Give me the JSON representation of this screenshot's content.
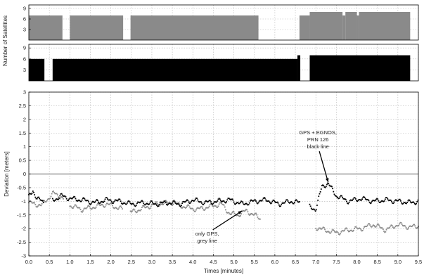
{
  "figure": {
    "ylabel_satellites": "Number of Satellites",
    "colors": {
      "grey": "#8a8a8a",
      "black": "#000000",
      "zero_line": "#7f7f7f",
      "grid": "#b5b5b5"
    }
  },
  "chart_data": [
    {
      "id": "top",
      "type": "area",
      "title": "",
      "xlim": [
        0,
        9.5
      ],
      "ylim": [
        0,
        10
      ],
      "yticks": [
        3,
        6,
        9
      ],
      "xticks": [],
      "grid": true,
      "series": [
        {
          "segments": [
            {
              "x0": 0.0,
              "x1": 0.82,
              "y": 7
            },
            {
              "x0": 1.0,
              "x1": 2.3,
              "y": 7
            },
            {
              "x0": 2.48,
              "x1": 5.6,
              "y": 7
            },
            {
              "x0": 6.6,
              "x1": 6.85,
              "y": 7
            },
            {
              "x0": 6.85,
              "x1": 7.65,
              "y": 8
            },
            {
              "x0": 7.65,
              "x1": 7.72,
              "y": 7
            },
            {
              "x0": 7.72,
              "x1": 8.0,
              "y": 8
            },
            {
              "x0": 8.0,
              "x1": 8.05,
              "y": 7
            },
            {
              "x0": 8.05,
              "x1": 9.3,
              "y": 8
            }
          ]
        }
      ]
    },
    {
      "id": "middle",
      "type": "area",
      "title": "",
      "xlim": [
        0,
        9.5
      ],
      "ylim": [
        0,
        10
      ],
      "yticks": [
        3,
        6,
        9
      ],
      "xticks": [],
      "grid": true,
      "series": [
        {
          "segments": [
            {
              "x0": 0.0,
              "x1": 0.38,
              "y": 6
            },
            {
              "x0": 0.58,
              "x1": 6.55,
              "y": 6
            },
            {
              "x0": 6.55,
              "x1": 6.62,
              "y": 7
            },
            {
              "x0": 6.85,
              "x1": 9.3,
              "y": 7
            }
          ]
        }
      ]
    },
    {
      "id": "bottom",
      "type": "scatter",
      "title": "",
      "xlabel": "Times [minutes]",
      "ylabel": "Deviation [meters]",
      "xlim": [
        0,
        9.5
      ],
      "ylim": [
        -3,
        3
      ],
      "xticks": [
        0.0,
        0.5,
        1.0,
        1.5,
        2.0,
        2.5,
        3.0,
        3.5,
        4.0,
        4.5,
        5.0,
        5.5,
        6.0,
        6.5,
        7.0,
        7.5,
        8.0,
        8.5,
        9.0,
        9.5
      ],
      "xtick_labels": [
        "0.0",
        "0.5",
        "1.0",
        "1.5",
        "2.0",
        "2.5",
        "3.0",
        "3.5",
        "4.0",
        "4.5",
        "5.0",
        "5.5",
        "6.0",
        "6.5",
        "7.0",
        "7.5",
        "8.0",
        "8.5",
        "9.0",
        "9.5"
      ],
      "yticks": [
        -3,
        -2.5,
        -2,
        -1.5,
        -1,
        -0.5,
        0,
        0.5,
        1,
        1.5,
        2,
        2.5,
        3
      ],
      "ytick_labels": [
        "-3",
        "-2.5",
        "-2",
        "-1.5",
        "-1",
        "-0.5",
        "0",
        "0.5",
        "1",
        "1.5",
        "2",
        "2.5",
        "3"
      ],
      "grid": true,
      "reference_line_y": 0,
      "series": [
        {
          "color": "#8a8a8a",
          "ranges": [
            [
              0.0,
              0.85
            ],
            [
              1.0,
              2.3
            ],
            [
              2.48,
              5.65
            ],
            [
              7.0,
              9.5
            ]
          ],
          "points": [
            [
              0.0,
              -1.05
            ],
            [
              0.3,
              -1.15
            ],
            [
              0.5,
              -0.85
            ],
            [
              0.6,
              -0.7
            ],
            [
              0.8,
              -0.85
            ],
            [
              1.0,
              -1.15
            ],
            [
              1.3,
              -1.3
            ],
            [
              1.6,
              -1.2
            ],
            [
              1.9,
              -1.1
            ],
            [
              2.2,
              -1.25
            ],
            [
              2.5,
              -1.4
            ],
            [
              2.8,
              -1.25
            ],
            [
              3.1,
              -1.1
            ],
            [
              3.5,
              -1.05
            ],
            [
              3.8,
              -1.2
            ],
            [
              4.1,
              -1.3
            ],
            [
              4.4,
              -1.2
            ],
            [
              4.7,
              -1.1
            ],
            [
              4.9,
              -1.45
            ],
            [
              5.1,
              -1.5
            ],
            [
              5.3,
              -1.35
            ],
            [
              5.5,
              -1.5
            ],
            [
              5.65,
              -1.65
            ],
            [
              7.0,
              -1.95
            ],
            [
              7.2,
              -2.05
            ],
            [
              7.5,
              -2.15
            ],
            [
              7.8,
              -2.05
            ],
            [
              8.1,
              -2.0
            ],
            [
              8.4,
              -1.85
            ],
            [
              8.7,
              -2.05
            ],
            [
              9.0,
              -1.85
            ],
            [
              9.3,
              -1.95
            ],
            [
              9.5,
              -1.9
            ]
          ]
        },
        {
          "color": "#000000",
          "ranges": [
            [
              0.0,
              0.38
            ],
            [
              0.58,
              6.6
            ],
            [
              6.85,
              9.5
            ]
          ],
          "points": [
            [
              0.0,
              -0.85
            ],
            [
              0.1,
              -0.6
            ],
            [
              0.2,
              -0.9
            ],
            [
              0.38,
              -1.05
            ],
            [
              0.6,
              -0.95
            ],
            [
              0.8,
              -0.8
            ],
            [
              1.0,
              -0.9
            ],
            [
              1.3,
              -0.95
            ],
            [
              1.6,
              -1.05
            ],
            [
              1.9,
              -0.95
            ],
            [
              2.2,
              -1.0
            ],
            [
              2.5,
              -1.1
            ],
            [
              2.8,
              -1.05
            ],
            [
              3.1,
              -1.1
            ],
            [
              3.4,
              -1.05
            ],
            [
              3.7,
              -1.1
            ],
            [
              4.0,
              -0.95
            ],
            [
              4.3,
              -1.05
            ],
            [
              4.6,
              -1.0
            ],
            [
              4.9,
              -0.95
            ],
            [
              5.2,
              -1.1
            ],
            [
              5.5,
              -1.0
            ],
            [
              5.8,
              -0.95
            ],
            [
              6.1,
              -1.1
            ],
            [
              6.4,
              -1.0
            ],
            [
              6.6,
              -1.05
            ],
            [
              6.85,
              -1.2
            ],
            [
              7.0,
              -1.3
            ],
            [
              7.15,
              -0.45
            ],
            [
              7.3,
              -0.35
            ],
            [
              7.5,
              -0.8
            ],
            [
              7.8,
              -1.0
            ],
            [
              8.1,
              -0.9
            ],
            [
              8.4,
              -1.0
            ],
            [
              8.7,
              -0.95
            ],
            [
              9.0,
              -1.0
            ],
            [
              9.3,
              -1.05
            ],
            [
              9.5,
              -1.0
            ]
          ]
        }
      ],
      "annotations": [
        {
          "lines": [
            "GPS + EGNOS,",
            "PRN 126",
            "black line"
          ],
          "arrow_to": [
            7.3,
            -0.3
          ]
        },
        {
          "lines": [
            "only GPS,",
            "grey line"
          ],
          "arrow_to": [
            5.2,
            -1.35
          ]
        }
      ]
    }
  ]
}
